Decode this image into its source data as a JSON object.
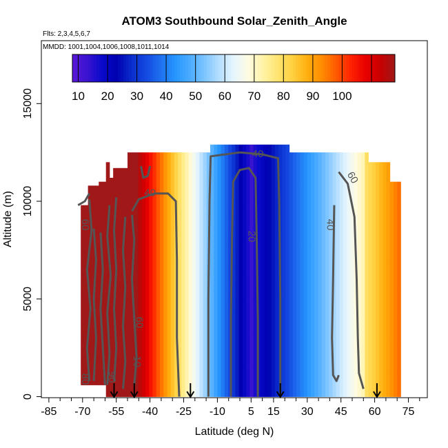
{
  "chart_data": {
    "type": "heatmap",
    "title": "ATOM3 Southbound Solar_Zenith_Angle",
    "subtitle_flights": "Flts: 2,3,4,5,6,7",
    "subtitle_dates": "MMDD: 1001,1004,1006,1008,1011,1014",
    "xlabel": "Latitude (deg N)",
    "ylabel": "Altitude (m)",
    "xlim": [
      -87,
      78
    ],
    "ylim": [
      0,
      18000
    ],
    "x_ticks": [
      -85,
      -70,
      -55,
      -40,
      -25,
      -10,
      5,
      15,
      30,
      45,
      60,
      75
    ],
    "x_tick_labels": [
      "-85",
      "-70",
      "-55",
      "-40",
      "-25",
      "-10",
      "5",
      "15",
      "30",
      "45",
      "60",
      "75"
    ],
    "x_minor_ticks": [
      -80,
      -75,
      -65,
      -60,
      -50,
      -45,
      -35,
      -30,
      -20,
      -15,
      -5,
      0,
      10,
      20,
      25,
      35,
      40,
      50,
      55,
      65,
      70,
      80
    ],
    "y_ticks": [
      0,
      5000,
      10000,
      15000
    ],
    "y_tick_labels": [
      "0",
      "5000",
      "10000",
      "15000"
    ],
    "colorbar": {
      "ticks": [
        10,
        20,
        30,
        40,
        50,
        60,
        70,
        80,
        90,
        100
      ],
      "tick_labels": [
        "10",
        "20",
        "30",
        "40",
        "50",
        "60",
        "70",
        "80",
        "90",
        "100"
      ],
      "range": [
        8,
        118
      ],
      "colors": [
        "#5b17d9",
        "#3a14d0",
        "#0a0acc",
        "#0000b0",
        "#0a2ccc",
        "#1448e0",
        "#1e70f0",
        "#2596ff",
        "#4aabff",
        "#7cc4ff",
        "#b4deff",
        "#e6f6ff",
        "#fffbe0",
        "#fff3a6",
        "#ffe470",
        "#ffd040",
        "#ffb010",
        "#ff8c00",
        "#ff5a00",
        "#ff2200",
        "#e80000",
        "#c80000",
        "#a01818"
      ]
    },
    "arrow_latitudes": [
      -56,
      -47,
      -22,
      18,
      61
    ],
    "contour_labels": [
      {
        "text": "40",
        "lat": -40,
        "alt": 10400,
        "rot": 0
      },
      {
        "text": "40",
        "lat": 8,
        "alt": 12400,
        "rot": 0
      },
      {
        "text": "60",
        "lat": 50,
        "alt": 11200,
        "rot": 60
      },
      {
        "text": "40",
        "lat": 40,
        "alt": 8800,
        "rot": 90
      },
      {
        "text": "20",
        "lat": 5,
        "alt": 8200,
        "rot": 90
      },
      {
        "text": "60",
        "lat": -69,
        "alt": 8800,
        "rot": 90
      },
      {
        "text": "60",
        "lat": -45,
        "alt": 3800,
        "rot": 90
      },
      {
        "text": "10",
        "lat": -46,
        "alt": 1800,
        "rot": 90
      },
      {
        "text": "80",
        "lat": -69,
        "alt": 900,
        "rot": 90
      },
      {
        "text": "90",
        "lat": -57,
        "alt": 1000,
        "rot": 90
      }
    ]
  }
}
